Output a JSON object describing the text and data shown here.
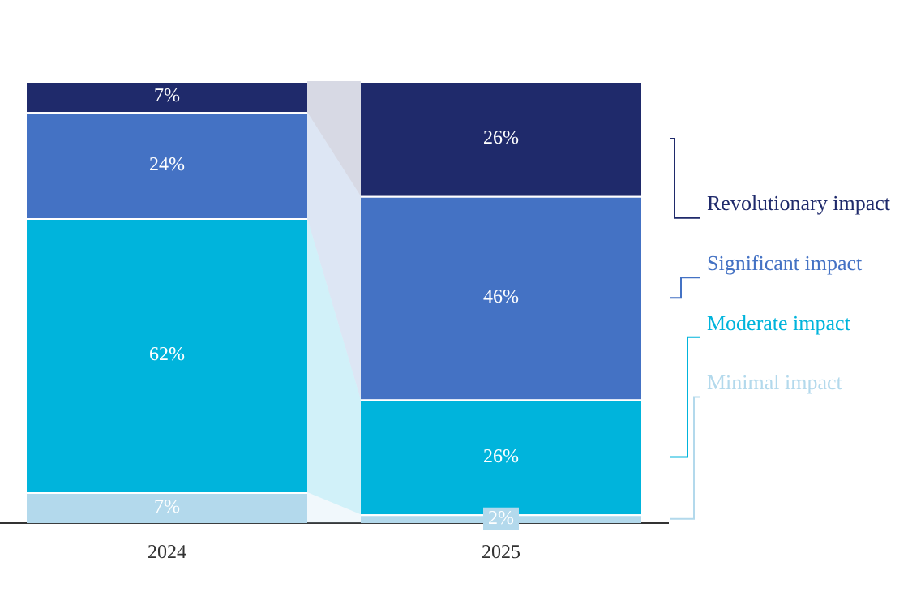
{
  "chart_data": {
    "type": "bar",
    "stacked": true,
    "legend": "right",
    "categories": [
      "2024",
      "2025"
    ],
    "series": [
      {
        "name": "Minimal impact",
        "color": "#b3d9ec",
        "values": [
          7,
          2
        ],
        "value_labels": [
          "7%",
          "2%"
        ]
      },
      {
        "name": "Moderate impact",
        "color": "#00b4dc",
        "values": [
          62,
          26
        ],
        "value_labels": [
          "62%",
          "26%"
        ]
      },
      {
        "name": "Significant impact",
        "color": "#4472c4",
        "values": [
          24,
          46
        ],
        "value_labels": [
          "24%",
          "46%"
        ]
      },
      {
        "name": "Revolutionary impact",
        "color": "#1f2a6b",
        "values": [
          7,
          26
        ],
        "value_labels": [
          "7%",
          "26%"
        ]
      }
    ]
  }
}
